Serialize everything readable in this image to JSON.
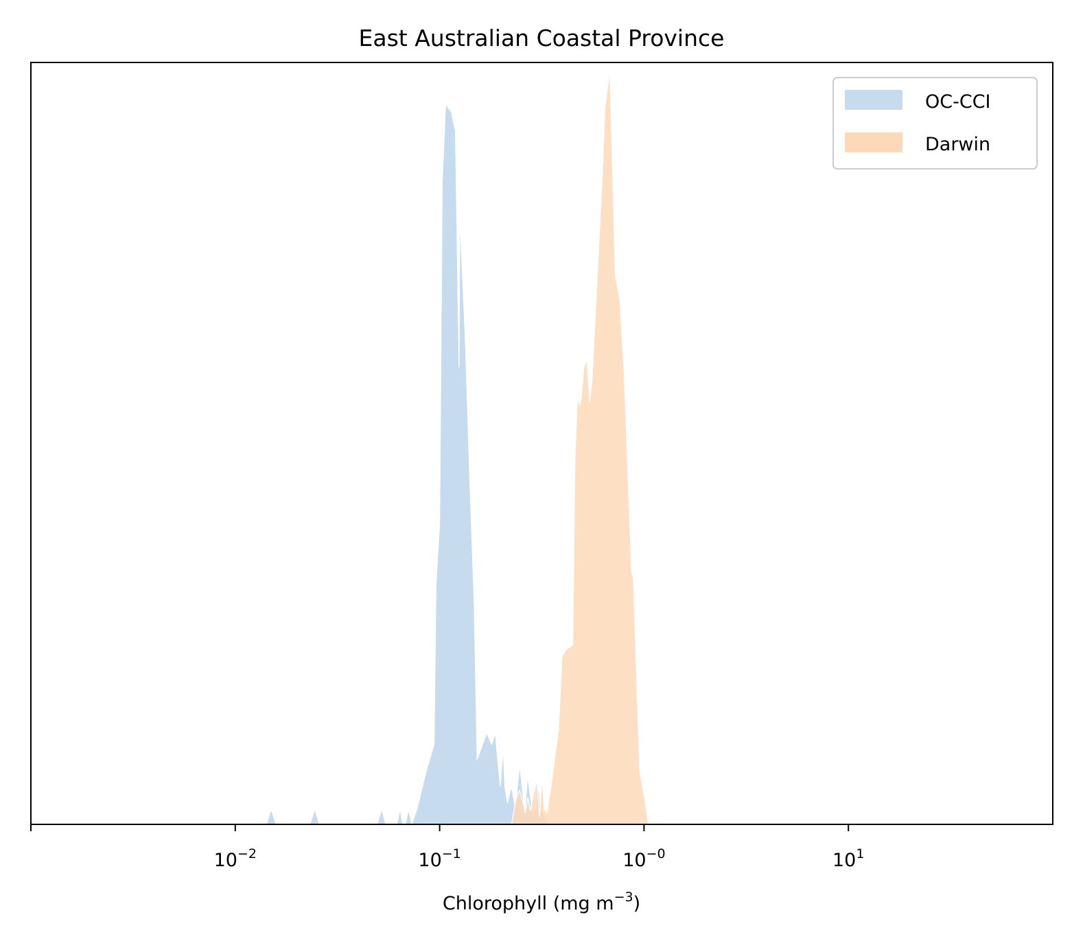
{
  "chart_data": {
    "type": "area",
    "title": "East Australian Coastal Province",
    "xlabel": "Chlorophyll  (mg m",
    "xlabel_exponent": "−3",
    "xlabel_suffix": ")",
    "xscale": "log",
    "xlim": [
      0.001,
      100
    ],
    "ylim": [
      0,
      1.0
    ],
    "yticks": "none",
    "grid": false,
    "legend": "top-right",
    "xticks": [
      {
        "value": 0.01,
        "base": "10",
        "exp": "−2"
      },
      {
        "value": 0.1,
        "base": "10",
        "exp": "−1"
      },
      {
        "value": 1,
        "base": "10",
        "exp": "−0"
      },
      {
        "value": 10,
        "base": "10",
        "exp": "1"
      }
    ],
    "series": [
      {
        "name": "OC-CCI",
        "color": "#c6dbed",
        "x": [
          0.0142,
          0.015,
          0.0158,
          0.0232,
          0.0245,
          0.0258,
          0.0495,
          0.052,
          0.0545,
          0.0618,
          0.064,
          0.066,
          0.068,
          0.0705,
          0.073,
          0.0775,
          0.086,
          0.094,
          0.096,
          0.1,
          0.103,
          0.107,
          0.114,
          0.1195,
          0.1245,
          0.1255,
          0.1335,
          0.1405,
          0.1475,
          0.1525,
          0.17,
          0.1795,
          0.1875,
          0.1905,
          0.198,
          0.2045,
          0.2085,
          0.2145,
          0.2245,
          0.2345,
          0.2465,
          0.2575,
          0.262,
          0.2695,
          0.277,
          0.285,
          0.2955,
          0.3055,
          0.3115,
          0.3185,
          0.3255,
          0.335,
          0.339
        ],
        "y": [
          0,
          0.02,
          0,
          0,
          0.02,
          0,
          0,
          0.02,
          0,
          0,
          0.02,
          0,
          0,
          0.02,
          0,
          0.02,
          0.07,
          0.105,
          0.315,
          0.395,
          0.845,
          0.945,
          0.935,
          0.91,
          0.6,
          0.8,
          0.635,
          0.45,
          0.29,
          0.085,
          0.12,
          0.105,
          0.12,
          0.095,
          0.05,
          0.1,
          0.05,
          0.028,
          0.05,
          0.022,
          0.078,
          0.03,
          0.02,
          0.065,
          0.038,
          0.015,
          0.02,
          0.05,
          0.02,
          0.015,
          0.01,
          0.005,
          0
        ]
      },
      {
        "name": "Darwin",
        "color": "#fdd9b9",
        "x": [
          0.225,
          0.2345,
          0.246,
          0.255,
          0.2625,
          0.27,
          0.278,
          0.2885,
          0.299,
          0.3085,
          0.3165,
          0.3255,
          0.335,
          0.351,
          0.363,
          0.382,
          0.397,
          0.4165,
          0.448,
          0.4595,
          0.4725,
          0.4845,
          0.4935,
          0.5075,
          0.5255,
          0.5425,
          0.556,
          0.5825,
          0.611,
          0.6255,
          0.6435,
          0.681,
          0.6985,
          0.7235,
          0.76,
          0.7965,
          0.815,
          0.8525,
          0.8695,
          0.8865,
          0.904,
          0.9525,
          1.02,
          1.05
        ],
        "y": [
          0,
          0.03,
          0.045,
          0.03,
          0.015,
          0.035,
          0.018,
          0.04,
          0.058,
          0.01,
          0.06,
          0.02,
          0.015,
          0.05,
          0.08,
          0.125,
          0.22,
          0.23,
          0.235,
          0.48,
          0.56,
          0.55,
          0.56,
          0.6,
          0.61,
          0.555,
          0.58,
          0.685,
          0.8,
          0.85,
          0.94,
          0.99,
          0.88,
          0.72,
          0.69,
          0.6,
          0.535,
          0.39,
          0.33,
          0.325,
          0.255,
          0.07,
          0.025,
          0
        ]
      }
    ]
  }
}
